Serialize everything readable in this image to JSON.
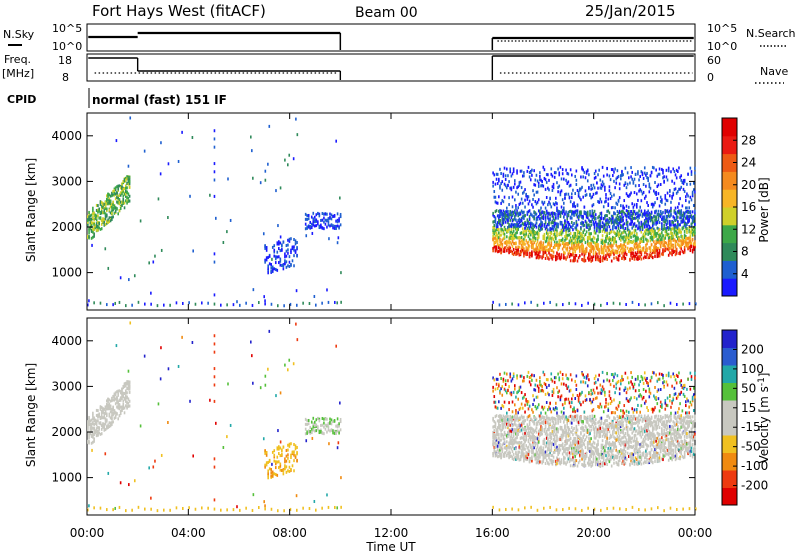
{
  "header": {
    "title": "Fort Hays West (fitACF)",
    "beam": "Beam 00",
    "date": "25/Jan/2015"
  },
  "strips": {
    "nsky_label": "N.Sky",
    "nsearch_label": "N.Search",
    "nsky_ticks": [
      "10^5",
      "10^0"
    ],
    "nsearch_ticks": [
      "10^5",
      "10^0"
    ],
    "freq_label_1": "Freq.",
    "freq_label_2": "[MHz]",
    "freq_ticks": [
      "18",
      "8"
    ],
    "nave_label": "Nave",
    "nave_ticks": [
      "60",
      "0"
    ],
    "cpid_label": "CPID",
    "cpid_text": "normal (fast) 151 IF"
  },
  "chart_data": [
    {
      "type": "heatmap",
      "name": "power",
      "ylabel": "Slant Range [km]",
      "xlabel": "Time UT",
      "xlim": [
        0,
        24
      ],
      "ylim": [
        180,
        4500
      ],
      "x_ticks": [
        "00:00",
        "04:00",
        "08:00",
        "12:00",
        "16:00",
        "20:00",
        "00:00"
      ],
      "y_ticks": [
        1000,
        2000,
        3000,
        4000
      ],
      "colorbar": {
        "label": "Power [dB]",
        "ticks": [
          "4",
          "8",
          "12",
          "16",
          "20",
          "24",
          "28"
        ],
        "colors": [
          "#1a1aff",
          "#1e5fd0",
          "#2f8a5a",
          "#3da848",
          "#cfd02a",
          "#f7b526",
          "#f48a1e",
          "#ee5a14",
          "#ea1a12",
          "#e00000"
        ]
      },
      "data_gaps_ut": [
        [
          10.0,
          16.0
        ]
      ]
    },
    {
      "type": "heatmap",
      "name": "velocity",
      "ylabel": "Slant Range [km]",
      "xlabel": "Time UT",
      "xlim": [
        0,
        24
      ],
      "ylim": [
        180,
        4500
      ],
      "x_ticks": [
        "00:00",
        "04:00",
        "08:00",
        "12:00",
        "16:00",
        "20:00",
        "00:00"
      ],
      "y_ticks": [
        1000,
        2000,
        3000,
        4000
      ],
      "colorbar": {
        "label": "Velocity [m s^-1]",
        "ticks": [
          "200",
          "100",
          "50",
          "15",
          "-15",
          "-50",
          "-100",
          "-200"
        ],
        "colors": [
          "#2222cc",
          "#2a5ccf",
          "#22a8a8",
          "#55c03a",
          "#c8c8c0",
          "#c8c8c0",
          "#f0c020",
          "#f08a10",
          "#ee3a10",
          "#e00000"
        ]
      },
      "ground_scatter_color": "#c8c8c0"
    }
  ],
  "xaxis_title": "Time UT",
  "colors": {
    "axis": "#000000",
    "ground_scatter": "#c8c8c0"
  }
}
